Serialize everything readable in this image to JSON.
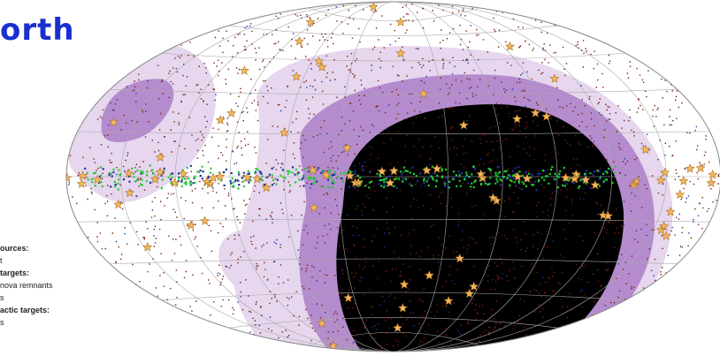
{
  "title": "orth",
  "legend": [
    "ources:",
    "t",
    "targets:",
    "nova remnants",
    "s",
    "actic targets:",
    "s"
  ]
}
